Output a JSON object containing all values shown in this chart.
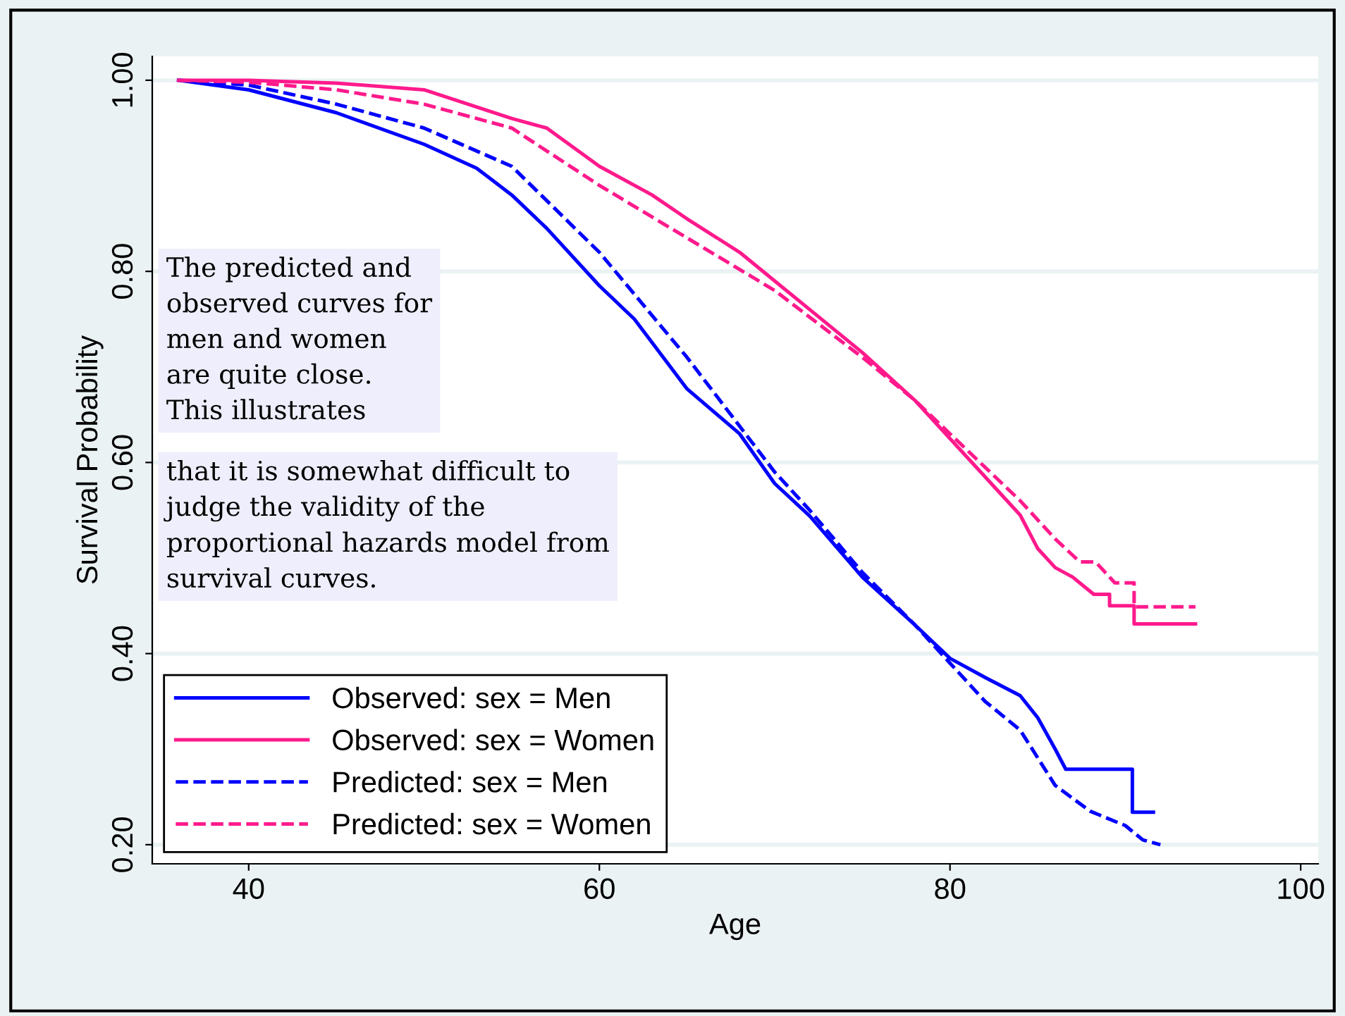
{
  "chart_data": {
    "type": "line",
    "xlabel": "Age",
    "ylabel": "Survival Probability",
    "xlim": [
      34.5,
      101
    ],
    "ylim": [
      0.18,
      1.025
    ],
    "xticks": [
      40,
      60,
      80,
      100
    ],
    "yticks": [
      {
        "value": 0.2,
        "label": "0.20"
      },
      {
        "value": 0.4,
        "label": "0.40"
      },
      {
        "value": 0.6,
        "label": "0.60"
      },
      {
        "value": 0.8,
        "label": "0.80"
      },
      {
        "value": 1.0,
        "label": "1.00"
      }
    ],
    "grid": "y",
    "legend": "bottom left",
    "annotations": [
      "The predicted and\nobserved curves for\nmen and women\nare quite close.\nThis illustrates",
      "that it is somewhat difficult to\njudge the validity of the\nproportional hazards model from\nsurvival curves."
    ],
    "series": [
      {
        "name": "Observed: sex = Men",
        "color": "#0000ff",
        "line_style": "solid",
        "x": [
          36,
          40,
          45,
          50,
          53,
          55,
          57,
          60,
          62,
          65,
          68,
          70,
          72,
          75,
          78,
          80,
          82,
          84,
          85,
          86,
          86.6,
          90.4,
          90.4,
          91.6
        ],
        "values": [
          1.0,
          0.99,
          0.966,
          0.933,
          0.908,
          0.88,
          0.845,
          0.785,
          0.75,
          0.677,
          0.63,
          0.578,
          0.544,
          0.48,
          0.43,
          0.395,
          0.375,
          0.356,
          0.333,
          0.3,
          0.279,
          0.279,
          0.234,
          0.234
        ]
      },
      {
        "name": "Observed: sex = Women",
        "color": "#ff1a8c",
        "line_style": "solid",
        "x": [
          36,
          40,
          45,
          50,
          55,
          57,
          60,
          63,
          65,
          68,
          70,
          72,
          75,
          78,
          80,
          82,
          84,
          85,
          86,
          87,
          88.2,
          89.1,
          89.1,
          90.5,
          90.5,
          94
        ],
        "values": [
          1.0,
          1.0,
          0.997,
          0.99,
          0.96,
          0.95,
          0.91,
          0.88,
          0.855,
          0.82,
          0.79,
          0.76,
          0.715,
          0.665,
          0.625,
          0.585,
          0.545,
          0.51,
          0.49,
          0.48,
          0.462,
          0.462,
          0.45,
          0.45,
          0.431,
          0.431
        ]
      },
      {
        "name": "Predicted: sex = Men",
        "color": "#0000ff",
        "line_style": "dashed",
        "x": [
          36,
          40,
          45,
          50,
          55,
          60,
          65,
          70,
          72,
          75,
          78,
          80,
          82,
          84,
          86,
          88,
          90,
          91,
          92
        ],
        "values": [
          1.0,
          0.995,
          0.975,
          0.95,
          0.91,
          0.82,
          0.71,
          0.59,
          0.55,
          0.485,
          0.43,
          0.39,
          0.35,
          0.32,
          0.262,
          0.235,
          0.22,
          0.205,
          0.2
        ]
      },
      {
        "name": "Predicted: sex = Women",
        "color": "#ff1a8c",
        "line_style": "dashed",
        "x": [
          36,
          40,
          45,
          50,
          55,
          60,
          65,
          70,
          75,
          78,
          80,
          82,
          84,
          86,
          87.4,
          88.3,
          89.4,
          90.5,
          90.5,
          94
        ],
        "values": [
          1.0,
          0.998,
          0.99,
          0.975,
          0.95,
          0.89,
          0.835,
          0.78,
          0.71,
          0.665,
          0.63,
          0.595,
          0.56,
          0.52,
          0.496,
          0.496,
          0.474,
          0.474,
          0.449,
          0.449
        ]
      }
    ]
  }
}
